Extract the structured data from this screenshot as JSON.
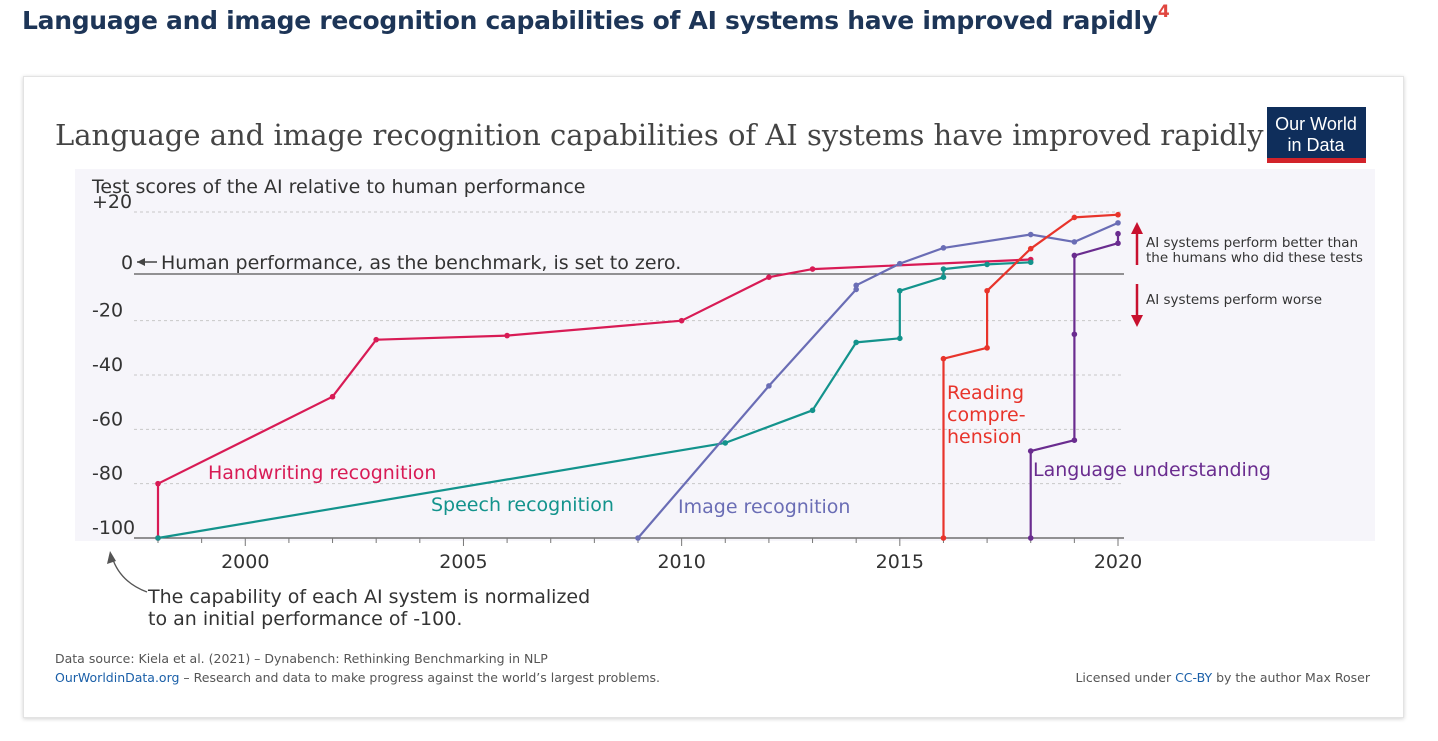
{
  "page": {
    "heading": "Language and image recognition capabilities of AI systems have improved rapidly",
    "footnote_ref": "4"
  },
  "chart_data": {
    "type": "line",
    "title": "Language and image recognition capabilities of AI systems have improved rapidly",
    "ylabel": "Test scores of the AI relative to human performance",
    "xlim": [
      1998,
      2020
    ],
    "ylim": [
      -100,
      20
    ],
    "x_ticks": [
      2000,
      2005,
      2010,
      2015,
      2020
    ],
    "y_ticks": [
      {
        "value": 20,
        "label": "+20"
      },
      {
        "value": 0,
        "label": "0"
      },
      {
        "value": -20,
        "label": "-20"
      },
      {
        "value": -40,
        "label": "-40"
      },
      {
        "value": -60,
        "label": "-60"
      },
      {
        "value": -80,
        "label": "-80"
      },
      {
        "value": -100,
        "label": "-100"
      }
    ],
    "grid": true,
    "zero_annotation": "Human performance, as the benchmark, is set to zero.",
    "above_annotation": [
      "AI systems perform better than",
      "the humans who did these tests"
    ],
    "below_annotation": "AI systems perform worse",
    "bottom_annotation": [
      "The capability of each AI system is normalized",
      "to an initial performance of -100."
    ],
    "series": [
      {
        "name": "Handwriting recognition",
        "color": "#d81b55",
        "points": [
          [
            1998,
            -100
          ],
          [
            1998,
            -80
          ],
          [
            2002,
            -48
          ],
          [
            2003,
            -27
          ],
          [
            2006,
            -25.5
          ],
          [
            2010,
            -20
          ],
          [
            2012,
            -4
          ],
          [
            2013,
            -1
          ],
          [
            2018,
            2.5
          ]
        ]
      },
      {
        "name": "Speech recognition",
        "color": "#13938c",
        "points": [
          [
            1998,
            -100
          ],
          [
            2011,
            -65
          ],
          [
            2013,
            -53
          ],
          [
            2014,
            -28
          ],
          [
            2015,
            -26.5
          ],
          [
            2015,
            -9
          ],
          [
            2016,
            -4
          ],
          [
            2016,
            -1
          ],
          [
            2017,
            0.7
          ],
          [
            2018,
            1.5
          ]
        ]
      },
      {
        "name": "Image recognition",
        "color": "#6a6db5",
        "points": [
          [
            2009,
            -100
          ],
          [
            2012,
            -44
          ],
          [
            2014,
            -8.5
          ],
          [
            2014,
            -7
          ],
          [
            2015,
            1
          ],
          [
            2016,
            6.8
          ],
          [
            2018,
            11.7
          ],
          [
            2019,
            9
          ],
          [
            2020,
            16
          ]
        ]
      },
      {
        "name": "Reading comprehension",
        "label_lines": [
          "Reading",
          "compre-",
          "hension"
        ],
        "color": "#e8342b",
        "points": [
          [
            2016,
            -100
          ],
          [
            2016,
            -34
          ],
          [
            2017,
            -30
          ],
          [
            2017,
            -9
          ],
          [
            2018,
            6.5
          ],
          [
            2019,
            18
          ],
          [
            2020,
            19
          ]
        ]
      },
      {
        "name": "Language understanding",
        "color": "#6a2c8f",
        "points": [
          [
            2018,
            -100
          ],
          [
            2018,
            -68
          ],
          [
            2019,
            -64
          ],
          [
            2019,
            -25
          ],
          [
            2019,
            4
          ],
          [
            2020,
            8.5
          ],
          [
            2020,
            12
          ]
        ]
      }
    ]
  },
  "logo": {
    "line1": "Our World",
    "line2": "in Data",
    "bg": "#0f2e5b",
    "accent": "#d2232a"
  },
  "footer": {
    "source": "Data source: Kiela et al. (2021) – Dynabench: Rethinking Benchmarking in NLP",
    "site_link": "OurWorldinData.org",
    "site_rest": " – Research and data to make progress against the world’s largest problems.",
    "license_prefix": "Licensed under ",
    "license_link": "CC-BY",
    "license_suffix": " by the author Max Roser"
  }
}
